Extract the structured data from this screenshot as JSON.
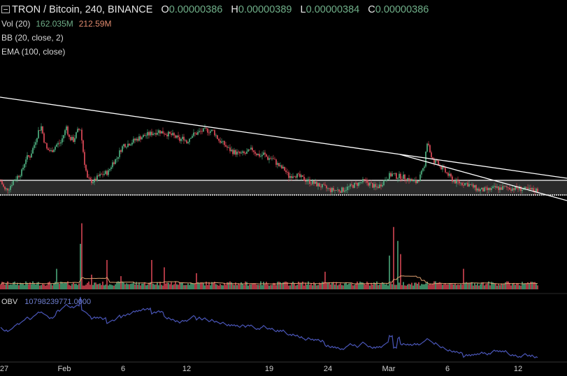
{
  "header": {
    "symbol": "TRON / Bitcoin, 240, BINANCE",
    "open_label": "O",
    "open": "0.00000386",
    "high_label": "H",
    "high": "0.00000389",
    "low_label": "L",
    "low": "0.00000384",
    "close_label": "C",
    "close": "0.00000386"
  },
  "indicators": {
    "vol_label": "Vol (20)",
    "vol_value": "162.035M",
    "vol_ma": "212.59M",
    "bb_label": "BB (20, close, 2)",
    "ema_label": "EMA (100, close)",
    "obv_label": "OBV",
    "obv_value": "10798239771.0000"
  },
  "colors": {
    "up": "#53b987",
    "down": "#eb4d5c",
    "obv": "#4a56b8",
    "vol_ma": "#e0a070",
    "trendline": "#ffffff"
  },
  "x_axis": {
    "labels": [
      "27",
      "Feb",
      "6",
      "12",
      "19",
      "24",
      "Mar",
      "6",
      "12"
    ]
  },
  "chart_data": {
    "type": "candlestick",
    "price_path": [
      [
        0,
        0.36
      ],
      [
        3,
        0.34
      ],
      [
        6,
        0.345
      ],
      [
        9,
        0.36
      ],
      [
        12,
        0.37
      ],
      [
        15,
        0.38
      ],
      [
        18,
        0.41
      ],
      [
        21,
        0.415
      ],
      [
        24,
        0.44
      ],
      [
        27,
        0.47
      ],
      [
        29,
        0.48
      ],
      [
        31,
        0.45
      ],
      [
        33,
        0.43
      ],
      [
        36,
        0.425
      ],
      [
        40,
        0.44
      ],
      [
        43,
        0.445
      ],
      [
        46,
        0.47
      ],
      [
        47,
        0.48
      ],
      [
        49,
        0.455
      ],
      [
        52,
        0.45
      ],
      [
        55,
        0.47
      ],
      [
        57,
        0.475
      ],
      [
        60,
        0.4
      ],
      [
        62,
        0.365
      ],
      [
        64,
        0.36
      ],
      [
        67,
        0.36
      ],
      [
        70,
        0.37
      ],
      [
        73,
        0.375
      ],
      [
        77,
        0.38
      ],
      [
        80,
        0.4
      ],
      [
        83,
        0.41
      ],
      [
        86,
        0.43
      ],
      [
        88,
        0.44
      ],
      [
        90,
        0.44
      ],
      [
        93,
        0.445
      ],
      [
        96,
        0.45
      ],
      [
        99,
        0.455
      ],
      [
        103,
        0.46
      ],
      [
        108,
        0.465
      ],
      [
        113,
        0.47
      ],
      [
        118,
        0.465
      ],
      [
        123,
        0.46
      ],
      [
        126,
        0.455
      ],
      [
        128,
        0.45
      ],
      [
        131,
        0.455
      ],
      [
        133,
        0.445
      ],
      [
        136,
        0.46
      ],
      [
        140,
        0.465
      ],
      [
        144,
        0.47
      ],
      [
        147,
        0.472
      ],
      [
        150,
        0.47
      ],
      [
        152,
        0.47
      ],
      [
        156,
        0.45
      ],
      [
        160,
        0.44
      ],
      [
        163,
        0.43
      ],
      [
        166,
        0.425
      ],
      [
        170,
        0.42
      ],
      [
        175,
        0.42
      ],
      [
        180,
        0.43
      ],
      [
        183,
        0.42
      ],
      [
        186,
        0.415
      ],
      [
        188,
        0.42
      ],
      [
        191,
        0.41
      ],
      [
        194,
        0.41
      ],
      [
        197,
        0.4
      ],
      [
        200,
        0.39
      ],
      [
        203,
        0.385
      ],
      [
        206,
        0.37
      ],
      [
        210,
        0.375
      ],
      [
        213,
        0.37
      ],
      [
        216,
        0.365
      ],
      [
        220,
        0.36
      ],
      [
        224,
        0.355
      ],
      [
        228,
        0.35
      ],
      [
        232,
        0.345
      ],
      [
        236,
        0.34
      ],
      [
        240,
        0.34
      ],
      [
        244,
        0.34
      ],
      [
        248,
        0.345
      ],
      [
        252,
        0.35
      ],
      [
        256,
        0.355
      ],
      [
        260,
        0.36
      ],
      [
        263,
        0.355
      ],
      [
        266,
        0.35
      ],
      [
        268,
        0.345
      ],
      [
        271,
        0.35
      ],
      [
        274,
        0.36
      ],
      [
        277,
        0.37
      ],
      [
        280,
        0.375
      ],
      [
        283,
        0.37
      ],
      [
        286,
        0.37
      ],
      [
        290,
        0.367
      ],
      [
        294,
        0.36
      ],
      [
        297,
        0.357
      ],
      [
        300,
        0.37
      ],
      [
        303,
        0.39
      ],
      [
        304,
        0.43
      ],
      [
        305,
        0.445
      ],
      [
        306,
        0.44
      ],
      [
        308,
        0.41
      ],
      [
        310,
        0.4
      ],
      [
        312,
        0.405
      ],
      [
        315,
        0.39
      ],
      [
        318,
        0.38
      ],
      [
        321,
        0.37
      ],
      [
        324,
        0.36
      ],
      [
        327,
        0.357
      ],
      [
        330,
        0.355
      ],
      [
        333,
        0.355
      ],
      [
        336,
        0.35
      ],
      [
        339,
        0.345
      ],
      [
        342,
        0.34
      ],
      [
        345,
        0.34
      ],
      [
        348,
        0.34
      ],
      [
        351,
        0.342
      ],
      [
        354,
        0.345
      ],
      [
        357,
        0.344
      ],
      [
        360,
        0.345
      ],
      [
        363,
        0.345
      ],
      [
        366,
        0.344
      ],
      [
        369,
        0.344
      ],
      [
        372,
        0.343
      ],
      [
        375,
        0.341
      ],
      [
        378,
        0.34
      ],
      [
        381,
        0.34
      ],
      [
        384,
        0.34
      ]
    ],
    "volume_spikes": [
      [
        40,
        0.28
      ],
      [
        57,
        0.62
      ],
      [
        58,
        0.9
      ],
      [
        65,
        0.2
      ],
      [
        76,
        0.4
      ],
      [
        86,
        0.18
      ],
      [
        108,
        0.4
      ],
      [
        117,
        0.3
      ],
      [
        140,
        0.22
      ],
      [
        232,
        0.24
      ],
      [
        278,
        0.46
      ],
      [
        281,
        0.85
      ],
      [
        284,
        0.66
      ],
      [
        286,
        0.48
      ],
      [
        331,
        0.28
      ]
    ]
  }
}
